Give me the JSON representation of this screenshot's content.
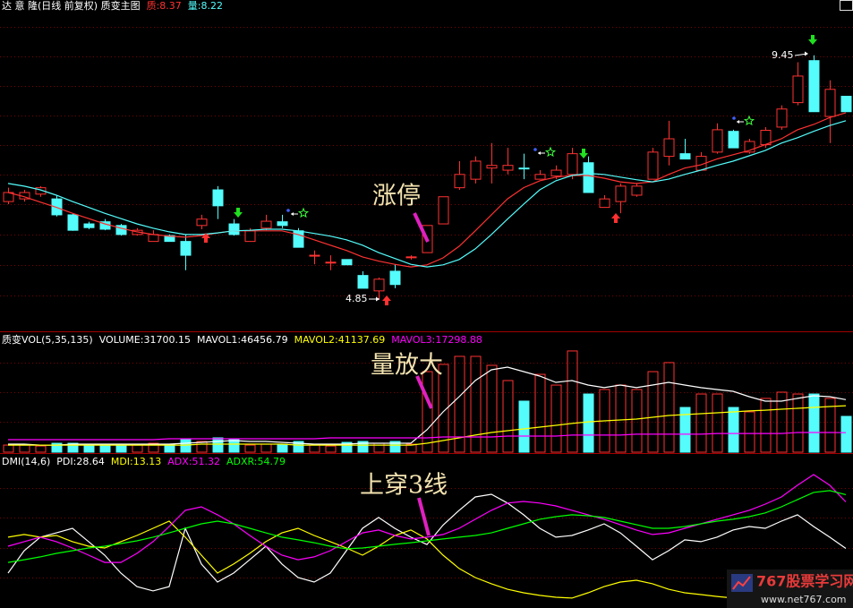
{
  "chart_data": [
    {
      "type": "candlestick",
      "title": "达 意 隆(日线 前复权) 质变主图",
      "up_color": "#ff3232",
      "down_color": "#54fcfc",
      "ylim": [
        4.26,
        10.49
      ],
      "open": [
        6.7,
        6.75,
        6.84,
        6.75,
        6.45,
        6.28,
        6.32,
        6.25,
        6.08,
        5.95,
        6.06,
        5.95,
        6.25,
        6.92,
        6.28,
        5.95,
        6.2,
        6.32,
        6.15,
        5.68,
        5.56,
        5.61,
        5.31,
        5.02,
        5.39,
        5.66,
        5.74,
        6.28,
        6.96,
        7.12,
        7.33,
        7.29,
        7.33,
        7.12,
        7.18,
        7.21,
        7.43,
        6.59,
        6.7,
        6.82,
        7.12,
        7.55,
        7.6,
        7.29,
        7.63,
        8.02,
        7.63,
        7.77,
        8.1,
        8.56,
        9.35,
        8.3,
        8.68
      ],
      "high": [
        6.96,
        6.92,
        6.99,
        6.82,
        6.48,
        6.32,
        6.37,
        6.28,
        6.2,
        6.16,
        6.08,
        6.08,
        6.45,
        6.99,
        6.37,
        6.2,
        6.45,
        6.45,
        6.2,
        5.78,
        5.69,
        5.61,
        5.39,
        5.27,
        5.52,
        5.69,
        6.25,
        6.79,
        7.46,
        7.55,
        7.8,
        7.71,
        7.6,
        7.29,
        7.38,
        7.71,
        7.55,
        6.82,
        7.04,
        7.04,
        7.71,
        8.22,
        7.88,
        7.63,
        8.17,
        8.05,
        7.88,
        8.1,
        8.51,
        9.32,
        9.45,
        8.98,
        8.68
      ],
      "low": [
        6.65,
        6.7,
        6.79,
        6.42,
        6.15,
        6.18,
        6.16,
        6.06,
        6.06,
        5.95,
        5.95,
        5.41,
        6.18,
        6.37,
        6.06,
        5.95,
        6.16,
        6.2,
        5.84,
        5.52,
        5.41,
        5.51,
        5.07,
        4.85,
        5.07,
        5.61,
        5.74,
        6.28,
        6.92,
        7.04,
        7.04,
        7.21,
        7.12,
        7.12,
        7.12,
        7.12,
        6.87,
        6.59,
        6.48,
        6.79,
        7.12,
        7.38,
        7.5,
        7.29,
        7.6,
        7.71,
        7.6,
        7.71,
        8.05,
        8.51,
        8.39,
        7.8,
        8.39
      ],
      "close": [
        6.87,
        6.87,
        6.96,
        6.45,
        6.16,
        6.21,
        6.18,
        6.08,
        6.16,
        6.08,
        5.95,
        5.69,
        6.37,
        6.62,
        6.08,
        6.15,
        6.33,
        6.25,
        5.84,
        5.69,
        5.56,
        5.51,
        5.07,
        5.24,
        5.14,
        5.66,
        6.25,
        6.79,
        7.21,
        7.46,
        7.38,
        7.38,
        7.32,
        7.21,
        7.29,
        7.6,
        6.87,
        6.75,
        6.99,
        6.99,
        7.63,
        7.88,
        7.5,
        7.55,
        8.05,
        7.71,
        7.83,
        8.04,
        8.44,
        9.06,
        8.39,
        8.81,
        8.39
      ],
      "series": [
        {
          "name": "质:8.37",
          "type": "line",
          "color": "#ff3232",
          "values": [
            6.87,
            6.79,
            6.69,
            6.59,
            6.48,
            6.38,
            6.28,
            6.2,
            6.13,
            6.08,
            6.05,
            6.03,
            6.06,
            6.11,
            6.15,
            6.15,
            6.15,
            6.15,
            6.08,
            5.98,
            5.88,
            5.78,
            5.66,
            5.58,
            5.52,
            5.47,
            5.51,
            5.64,
            5.86,
            6.15,
            6.45,
            6.75,
            6.96,
            7.09,
            7.16,
            7.19,
            7.19,
            7.14,
            7.07,
            7.04,
            7.07,
            7.21,
            7.33,
            7.39,
            7.5,
            7.58,
            7.66,
            7.77,
            7.88,
            8.05,
            8.15,
            8.28,
            8.37
          ]
        },
        {
          "name": "量:8.22",
          "type": "line",
          "color": "#54fcfc",
          "values": [
            7.04,
            6.99,
            6.92,
            6.82,
            6.7,
            6.59,
            6.48,
            6.38,
            6.28,
            6.2,
            6.13,
            6.08,
            6.08,
            6.11,
            6.15,
            6.16,
            6.18,
            6.18,
            6.15,
            6.1,
            6.05,
            5.98,
            5.88,
            5.74,
            5.63,
            5.52,
            5.47,
            5.51,
            5.61,
            5.81,
            6.08,
            6.37,
            6.65,
            6.92,
            7.09,
            7.19,
            7.23,
            7.21,
            7.16,
            7.11,
            7.07,
            7.12,
            7.21,
            7.29,
            7.38,
            7.46,
            7.56,
            7.66,
            7.8,
            7.9,
            8.02,
            8.13,
            8.22
          ]
        }
      ],
      "annotations": [
        "涨停"
      ]
    },
    {
      "type": "bar",
      "title": "质变VOL(5,35,135)",
      "up_color": "#ff3232",
      "down_color": "#54fcfc",
      "ylim": [
        0,
        105400
      ],
      "series": [
        {
          "name": "VOLUME:31700.15",
          "type": "bar",
          "color": "#ffffff",
          "values": [
            6300,
            6300,
            5500,
            7900,
            7900,
            6300,
            7100,
            7100,
            6300,
            7900,
            7100,
            11100,
            9500,
            12700,
            11100,
            6300,
            7100,
            7100,
            9500,
            6300,
            5500,
            8700,
            9500,
            7900,
            9500,
            7100,
            71300,
            77700,
            84800,
            84800,
            76900,
            63400,
            45200,
            68900,
            59400,
            89600,
            51500,
            55500,
            59400,
            55500,
            71300,
            79300,
            39600,
            51500,
            51500,
            39600,
            35700,
            47600,
            53100,
            51500,
            51500,
            47600,
            31700
          ]
        },
        {
          "name": "MAVOL1:46456.79",
          "type": "line",
          "color": "#ffffff",
          "values": [
            7100,
            7100,
            6300,
            6300,
            7100,
            7100,
            7100,
            7100,
            7100,
            7100,
            7100,
            7900,
            8700,
            9500,
            10300,
            9500,
            9500,
            8700,
            7900,
            7100,
            7100,
            7100,
            7900,
            7900,
            7900,
            7900,
            19800,
            35700,
            49100,
            63400,
            72900,
            75300,
            71300,
            67400,
            61800,
            63400,
            59400,
            57100,
            59400,
            57100,
            59400,
            61800,
            59400,
            57100,
            55500,
            53900,
            49100,
            45200,
            45200,
            47600,
            49900,
            49100,
            46500
          ]
        },
        {
          "name": "MAVOL2:41137.69",
          "type": "line",
          "color": "#ffff00",
          "values": [
            6300,
            6300,
            6300,
            6300,
            6300,
            6300,
            6300,
            6300,
            6300,
            6300,
            6300,
            6300,
            7100,
            7100,
            7100,
            7100,
            7100,
            7100,
            6300,
            6300,
            6300,
            6300,
            6300,
            6300,
            6300,
            6300,
            7900,
            10300,
            12700,
            15100,
            17400,
            19000,
            20600,
            22200,
            23800,
            25400,
            26900,
            27700,
            28500,
            29300,
            30900,
            32500,
            33300,
            34100,
            34900,
            35700,
            36500,
            37200,
            38000,
            38800,
            39600,
            40400,
            41100
          ]
        },
        {
          "name": "MAVOL3:17298.88",
          "type": "line",
          "color": "#ff00ff",
          "values": [
            11100,
            11100,
            11100,
            11100,
            11100,
            11100,
            11100,
            11100,
            11100,
            11100,
            11900,
            11900,
            11900,
            11900,
            11900,
            11900,
            11900,
            11900,
            11900,
            11900,
            12700,
            12700,
            12700,
            12700,
            12700,
            12700,
            12700,
            13500,
            13500,
            13500,
            13500,
            14300,
            14300,
            14300,
            14300,
            15100,
            15100,
            15100,
            15100,
            15900,
            15900,
            15900,
            15900,
            15900,
            16600,
            16600,
            16600,
            16600,
            16600,
            17400,
            17400,
            17400,
            17300
          ]
        }
      ],
      "annotations": [
        "量放大"
      ]
    },
    {
      "type": "line",
      "title": "DMI(14,6)",
      "ylim": [
        0,
        74.2
      ],
      "series": [
        {
          "name": "PDI:28.64",
          "color": "#ffffff",
          "values": [
            16.6,
            27.5,
            34.1,
            36.2,
            38.4,
            31.9,
            25.3,
            16.6,
            10.0,
            7.9,
            10.0,
            38.4,
            21.0,
            12.2,
            16.6,
            23.1,
            29.7,
            21.0,
            14.4,
            12.2,
            16.6,
            27.5,
            38.4,
            43.7,
            38.4,
            34.1,
            30.5,
            40.0,
            47.2,
            53.7,
            55.0,
            50.7,
            45.0,
            38.4,
            34.1,
            34.9,
            37.6,
            40.6,
            36.2,
            29.7,
            23.1,
            27.5,
            32.8,
            31.9,
            34.1,
            37.6,
            39.3,
            38.4,
            41.9,
            45.0,
            39.3,
            34.1,
            28.6
          ]
        },
        {
          "name": "MDI:13.13",
          "color": "#ffff00",
          "values": [
            34.1,
            35.4,
            34.1,
            34.9,
            31.9,
            29.7,
            28.8,
            31.9,
            34.9,
            38.4,
            41.9,
            34.1,
            25.3,
            16.6,
            21.0,
            26.2,
            31.9,
            36.2,
            38.4,
            34.9,
            31.9,
            28.8,
            25.3,
            29.7,
            34.9,
            37.6,
            33.2,
            25.3,
            18.8,
            14.4,
            11.4,
            8.7,
            7.0,
            5.7,
            4.8,
            4.4,
            7.0,
            10.0,
            12.2,
            13.1,
            11.4,
            8.7,
            7.0,
            6.1,
            5.2,
            4.4,
            4.8,
            5.7,
            7.0,
            8.7,
            10.5,
            12.2,
            13.1
          ]
        },
        {
          "name": "ADX:51.32",
          "color": "#ff00ff",
          "values": [
            29.7,
            31.9,
            34.1,
            31.9,
            28.8,
            25.3,
            21.8,
            21.8,
            26.2,
            31.9,
            39.3,
            47.2,
            48.9,
            45.0,
            40.6,
            34.9,
            29.7,
            25.3,
            23.1,
            24.5,
            27.5,
            31.9,
            36.2,
            37.6,
            34.9,
            33.2,
            34.1,
            35.4,
            38.4,
            42.8,
            47.2,
            50.7,
            51.5,
            50.7,
            49.3,
            47.2,
            45.0,
            42.8,
            40.2,
            37.6,
            35.4,
            36.2,
            38.4,
            40.6,
            42.8,
            45.0,
            47.2,
            50.2,
            53.7,
            59.4,
            64.6,
            59.4,
            51.3
          ]
        },
        {
          "name": "ADXR:54.79",
          "color": "#00ff00",
          "values": [
            21.8,
            23.1,
            24.5,
            26.2,
            27.5,
            28.8,
            29.7,
            31.0,
            32.3,
            34.1,
            36.2,
            38.4,
            40.6,
            41.9,
            40.6,
            38.4,
            36.2,
            34.1,
            32.8,
            31.4,
            29.7,
            28.4,
            28.8,
            29.7,
            30.6,
            31.4,
            32.3,
            33.2,
            34.1,
            34.9,
            36.2,
            38.4,
            40.6,
            42.8,
            44.1,
            45.0,
            44.5,
            43.7,
            41.9,
            40.2,
            38.4,
            38.4,
            39.3,
            40.6,
            41.9,
            42.8,
            44.1,
            45.9,
            48.9,
            52.4,
            55.9,
            56.8,
            54.8
          ]
        }
      ],
      "annotations": [
        "上穿3线"
      ]
    }
  ],
  "watermark": {
    "title": "767股票学习网",
    "url": "www.net767.com"
  }
}
